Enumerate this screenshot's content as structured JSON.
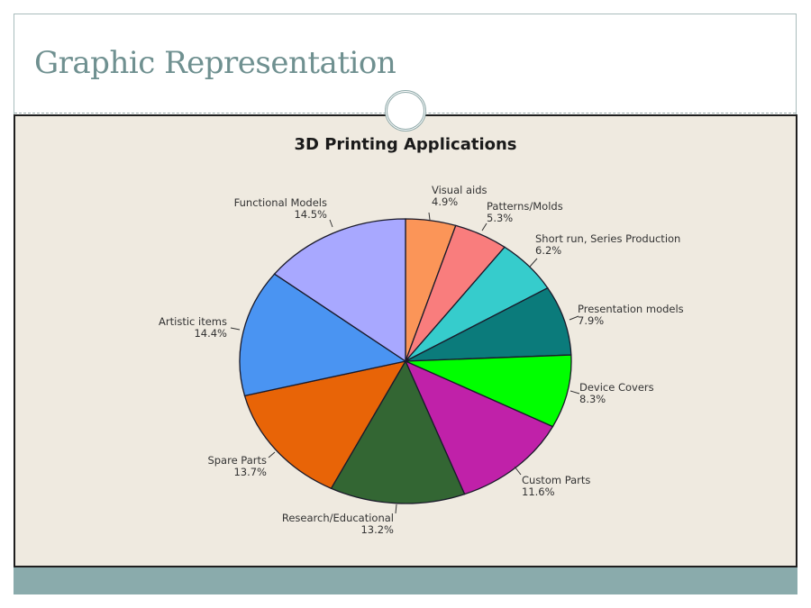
{
  "slide": {
    "title": "Graphic Representation"
  },
  "colors": {
    "title_text": "#6f9090",
    "chart_background": "#efeae0",
    "footer_bar": "#8aabac"
  },
  "chart_data": {
    "type": "pie",
    "title": "3D Printing Applications",
    "start_angle": "12 o'clock, clockwise",
    "legend": "none (direct slice labels)",
    "slices": [
      {
        "label": "Visual aids",
        "value": 4.9,
        "value_label": "4.9%",
        "color": "#fb9558"
      },
      {
        "label": "Patterns/Molds",
        "value": 5.3,
        "value_label": "5.3%",
        "color": "#f97d7d"
      },
      {
        "label": "Short run, Series Production",
        "value": 6.2,
        "value_label": "6.2%",
        "color": "#36cccc"
      },
      {
        "label": "Presentation models",
        "value": 7.9,
        "value_label": "7.9%",
        "color": "#0b7b7b"
      },
      {
        "label": "Device Covers",
        "value": 8.3,
        "value_label": "8.3%",
        "color": "#00ff00"
      },
      {
        "label": "Custom Parts",
        "value": 11.6,
        "value_label": "11.6%",
        "color": "#c021a9"
      },
      {
        "label": "Research/Educational",
        "value": 13.2,
        "value_label": "13.2%",
        "color": "#336633"
      },
      {
        "label": "Spare Parts",
        "value": 13.7,
        "value_label": "13.7%",
        "color": "#e86407"
      },
      {
        "label": "Artistic items",
        "value": 14.4,
        "value_label": "14.4%",
        "color": "#4a94f2"
      },
      {
        "label": "Functional Models",
        "value": 14.5,
        "value_label": "14.5%",
        "color": "#a8a8ff"
      }
    ]
  }
}
